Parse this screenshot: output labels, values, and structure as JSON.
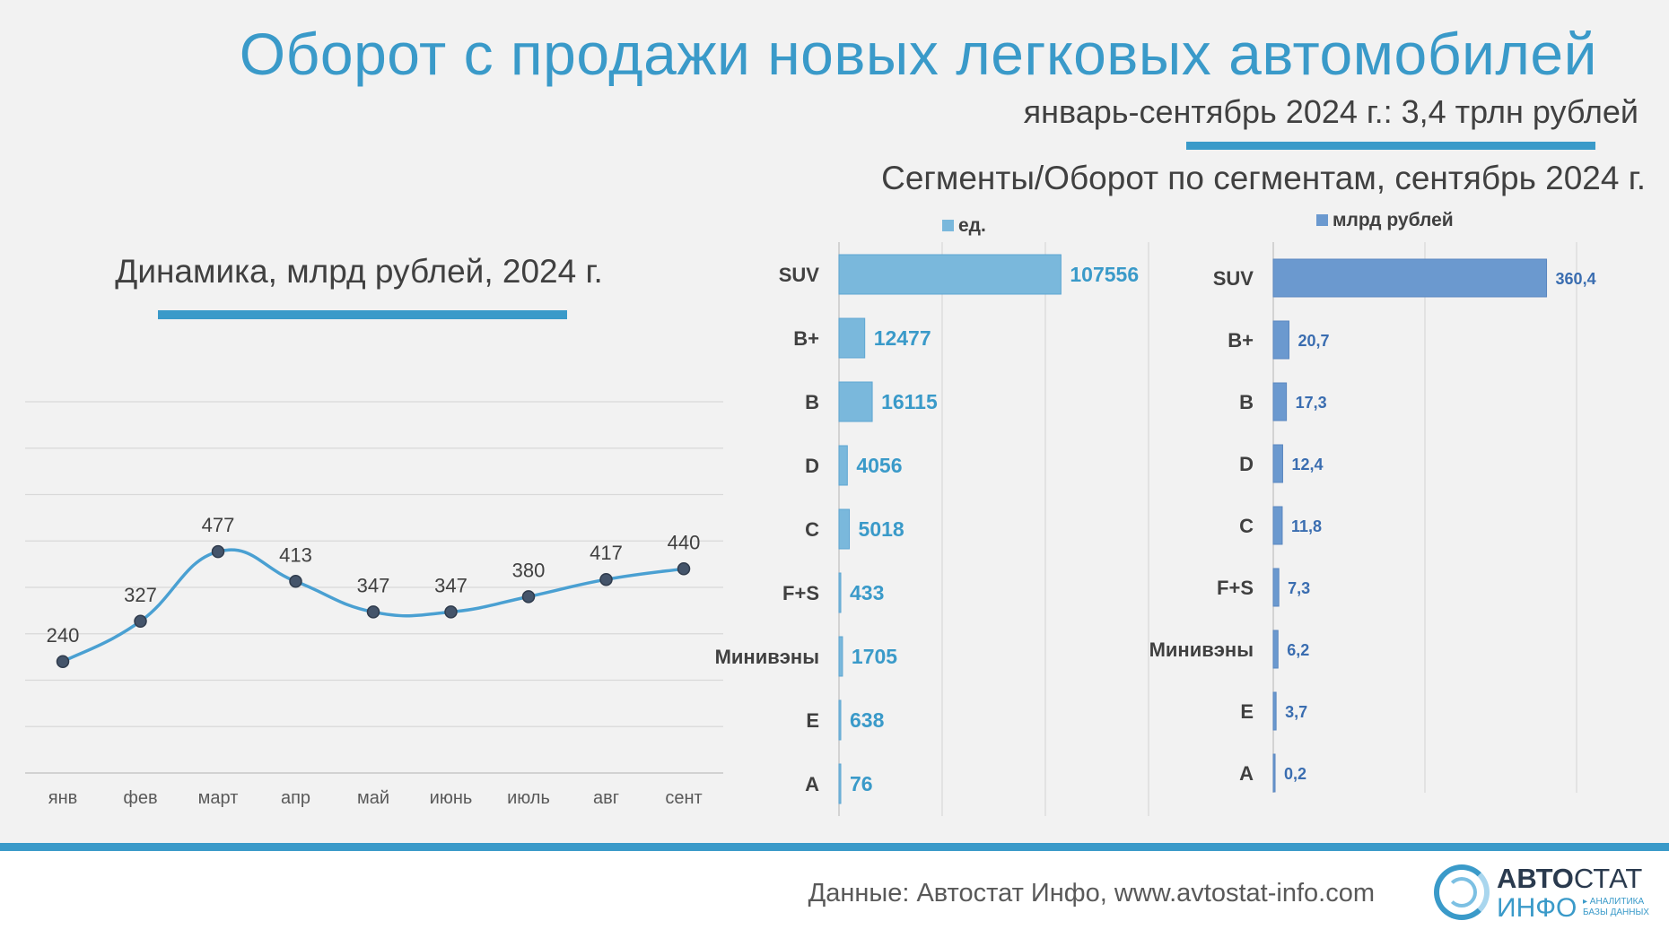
{
  "header": {
    "title": "Оборот с продажи новых легковых автомобилей",
    "subtitle": "январь-сентябрь 2024 г.: 3,4 трлн рублей",
    "segments_title": "Сегменты/Оборот по сегментам, сентябрь 2024 г.",
    "dynamics_title": "Динамика, млрд рублей, 2024 г."
  },
  "colors": {
    "accent": "#3a9ac9",
    "units_bar": "#7ab8dc",
    "units_label": "#3a9ac9",
    "rub_bar": "#6b99cf",
    "rub_label": "#3a6db0",
    "text": "#404040"
  },
  "chart_data": [
    {
      "type": "line",
      "title": "Динамика, млрд рублей, 2024 г.",
      "categories": [
        "янв",
        "фев",
        "март",
        "апр",
        "май",
        "июнь",
        "июль",
        "авг",
        "сент"
      ],
      "values": [
        240,
        327,
        477,
        413,
        347,
        347,
        380,
        417,
        440
      ],
      "value_labels": [
        "240",
        "327",
        "477",
        "413",
        "347",
        "347",
        "380",
        "417",
        "440"
      ],
      "ylim": [
        0,
        800
      ],
      "grid": true
    },
    {
      "type": "bar",
      "orientation": "horizontal",
      "legend": "ед.",
      "categories": [
        "SUV",
        "B+",
        "B",
        "D",
        "C",
        "F+S",
        "Минивэны",
        "E",
        "A"
      ],
      "values": [
        107556,
        12477,
        16115,
        4056,
        5018,
        433,
        1705,
        638,
        76
      ],
      "value_labels": [
        "107556",
        "12477",
        "16115",
        "4056",
        "5018",
        "433",
        "1705",
        "638",
        "76"
      ],
      "xlim": [
        0,
        150000
      ]
    },
    {
      "type": "bar",
      "orientation": "horizontal",
      "legend": "млрд рублей",
      "categories": [
        "SUV",
        "B+",
        "B",
        "D",
        "C",
        "F+S",
        "Минивэны",
        "E",
        "A"
      ],
      "values": [
        360.4,
        20.7,
        17.3,
        12.4,
        11.8,
        7.3,
        6.2,
        3.7,
        0.2
      ],
      "value_labels": [
        "360,4",
        "20,7",
        "17,3",
        "12,4",
        "11,8",
        "7,3",
        "6,2",
        "3,7",
        "0,2"
      ],
      "xlim": [
        0,
        400
      ]
    }
  ],
  "footer": {
    "source": "Данные: Автостат Инфо, www.avtostat-info.com",
    "logo_top_bold": "АВТО",
    "logo_top_thin": "СТАТ",
    "logo_bottom": "ИНФО",
    "logo_tag_1": "▸ АНАЛИТИКА",
    "logo_tag_2": "БАЗЫ ДАННЫХ"
  }
}
